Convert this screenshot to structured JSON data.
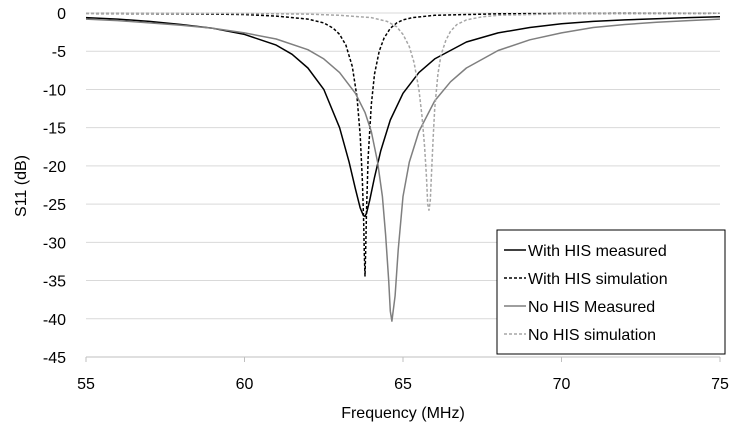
{
  "chart_data": {
    "type": "line",
    "title": "",
    "xlabel": "Frequency (MHz)",
    "ylabel": "S11 (dB)",
    "xlim": [
      55,
      75
    ],
    "ylim": [
      -45,
      0
    ],
    "xticks": [
      55,
      60,
      65,
      70,
      75
    ],
    "yticks": [
      0,
      -5,
      -10,
      -15,
      -20,
      -25,
      -30,
      -35,
      -40,
      -45
    ],
    "grid": "horizontal",
    "legend_position": "bottom-right",
    "series": [
      {
        "name": "With HIS measured",
        "color": "#000000",
        "dash": "solid",
        "x": [
          55,
          56,
          57,
          58,
          59,
          60,
          61,
          61.5,
          62,
          62.5,
          63,
          63.3,
          63.5,
          63.65,
          63.75,
          63.8,
          63.85,
          63.95,
          64.1,
          64.3,
          64.6,
          65,
          65.5,
          66,
          67,
          68,
          69,
          70,
          71,
          72,
          73,
          74,
          75
        ],
        "y": [
          -0.6,
          -0.8,
          -1.1,
          -1.5,
          -2.0,
          -2.8,
          -4.2,
          -5.4,
          -7.2,
          -10.0,
          -15.0,
          -19.5,
          -23.0,
          -25.5,
          -26.5,
          -26.6,
          -26.2,
          -24.5,
          -21.5,
          -18.0,
          -14.0,
          -10.5,
          -7.8,
          -6.0,
          -3.8,
          -2.6,
          -1.9,
          -1.4,
          -1.1,
          -0.9,
          -0.75,
          -0.6,
          -0.5
        ]
      },
      {
        "name": "With HIS simulation",
        "color": "#000000",
        "dash": "dashed",
        "x": [
          55,
          58,
          60,
          61,
          62,
          62.5,
          62.8,
          63.0,
          63.2,
          63.4,
          63.55,
          63.65,
          63.72,
          63.76,
          63.78,
          63.8,
          63.82,
          63.85,
          63.9,
          64.0,
          64.1,
          64.25,
          64.4,
          64.6,
          64.8,
          65.0,
          65.3,
          66,
          68,
          70,
          75
        ],
        "y": [
          -0.05,
          -0.1,
          -0.2,
          -0.4,
          -0.8,
          -1.3,
          -2.0,
          -2.8,
          -4.2,
          -7.0,
          -11.0,
          -16.0,
          -22.0,
          -27.5,
          -31.5,
          -34.4,
          -31.5,
          -26.0,
          -19.0,
          -12.0,
          -8.0,
          -5.0,
          -3.3,
          -2.0,
          -1.3,
          -0.9,
          -0.6,
          -0.3,
          -0.1,
          -0.07,
          -0.04
        ]
      },
      {
        "name": "No HIS Measured",
        "color": "#7f7f7f",
        "dash": "solid",
        "x": [
          55,
          56,
          57,
          58,
          59,
          60,
          61,
          62,
          62.5,
          63,
          63.5,
          63.8,
          64.0,
          64.2,
          64.35,
          64.45,
          64.55,
          64.6,
          64.65,
          64.75,
          64.85,
          65.0,
          65.2,
          65.5,
          66,
          66.5,
          67,
          68,
          69,
          70,
          71,
          72,
          73,
          74,
          75
        ],
        "y": [
          -0.8,
          -1.0,
          -1.3,
          -1.6,
          -2.0,
          -2.6,
          -3.4,
          -4.8,
          -6.0,
          -7.8,
          -10.5,
          -13.0,
          -15.5,
          -19.5,
          -24.0,
          -29.0,
          -35.0,
          -39.0,
          -40.3,
          -37.0,
          -31.0,
          -24.0,
          -19.5,
          -15.5,
          -11.5,
          -9.0,
          -7.2,
          -4.9,
          -3.5,
          -2.6,
          -1.9,
          -1.5,
          -1.2,
          -1.0,
          -0.8
        ]
      },
      {
        "name": "No HIS simulation",
        "color": "#a6a6a6",
        "dash": "dashed",
        "x": [
          55,
          58,
          60,
          62,
          63,
          64,
          64.5,
          64.8,
          65.0,
          65.2,
          65.35,
          65.5,
          65.6,
          65.68,
          65.74,
          65.78,
          65.82,
          65.86,
          65.9,
          65.95,
          66.0,
          66.1,
          66.2,
          66.35,
          66.5,
          66.7,
          67,
          67.5,
          68,
          70,
          75
        ],
        "y": [
          -0.04,
          -0.05,
          -0.08,
          -0.15,
          -0.3,
          -0.6,
          -1.1,
          -1.8,
          -2.8,
          -4.4,
          -6.5,
          -10.0,
          -13.5,
          -17.5,
          -21.5,
          -25.0,
          -25.8,
          -24.5,
          -21.0,
          -16.5,
          -12.5,
          -8.0,
          -5.5,
          -3.6,
          -2.4,
          -1.5,
          -0.9,
          -0.5,
          -0.3,
          -0.1,
          -0.04
        ]
      }
    ]
  }
}
